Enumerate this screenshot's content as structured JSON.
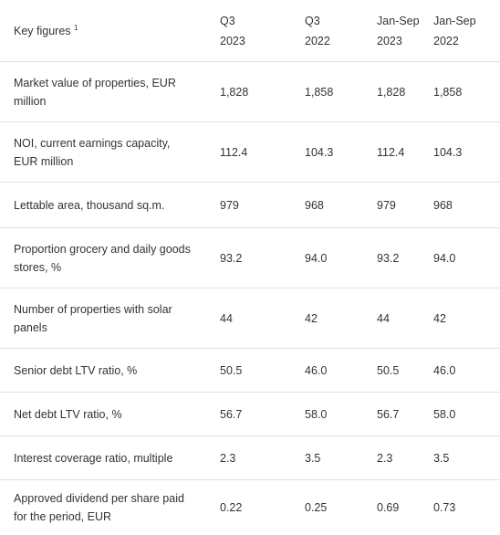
{
  "header": {
    "label": "Key figures",
    "footnote": "1",
    "columns": [
      {
        "line1": "Q3",
        "line2": "2023"
      },
      {
        "line1": "Q3",
        "line2": "2022"
      },
      {
        "line1": "Jan-Sep",
        "line2": "2023"
      },
      {
        "line1": "Jan-Sep",
        "line2": "2022"
      }
    ]
  },
  "rows": [
    {
      "label": "Market value of properties, EUR million",
      "values": [
        "1,828",
        "1,858",
        "1,828",
        "1,858"
      ]
    },
    {
      "label": "NOI, current earnings capacity, EUR million",
      "values": [
        "112.4",
        "104.3",
        "112.4",
        "104.3"
      ]
    },
    {
      "label": "Lettable area, thousand sq.m.",
      "values": [
        "979",
        "968",
        "979",
        "968"
      ]
    },
    {
      "label": "Proportion grocery and daily goods stores, %",
      "values": [
        "93.2",
        "94.0",
        "93.2",
        "94.0"
      ]
    },
    {
      "label": "Number of properties with solar panels",
      "values": [
        "44",
        "42",
        "44",
        "42"
      ]
    },
    {
      "label": "Senior debt LTV ratio, %",
      "values": [
        "50.5",
        "46.0",
        "50.5",
        "46.0"
      ]
    },
    {
      "label": "Net debt LTV ratio, %",
      "values": [
        "56.7",
        "58.0",
        "56.7",
        "58.0"
      ]
    },
    {
      "label": "Interest coverage ratio, multiple",
      "values": [
        "2.3",
        "3.5",
        "2.3",
        "3.5"
      ]
    },
    {
      "label": "Approved dividend per share paid for the period, EUR",
      "values": [
        "0.22",
        "0.25",
        "0.69",
        "0.73"
      ]
    }
  ]
}
